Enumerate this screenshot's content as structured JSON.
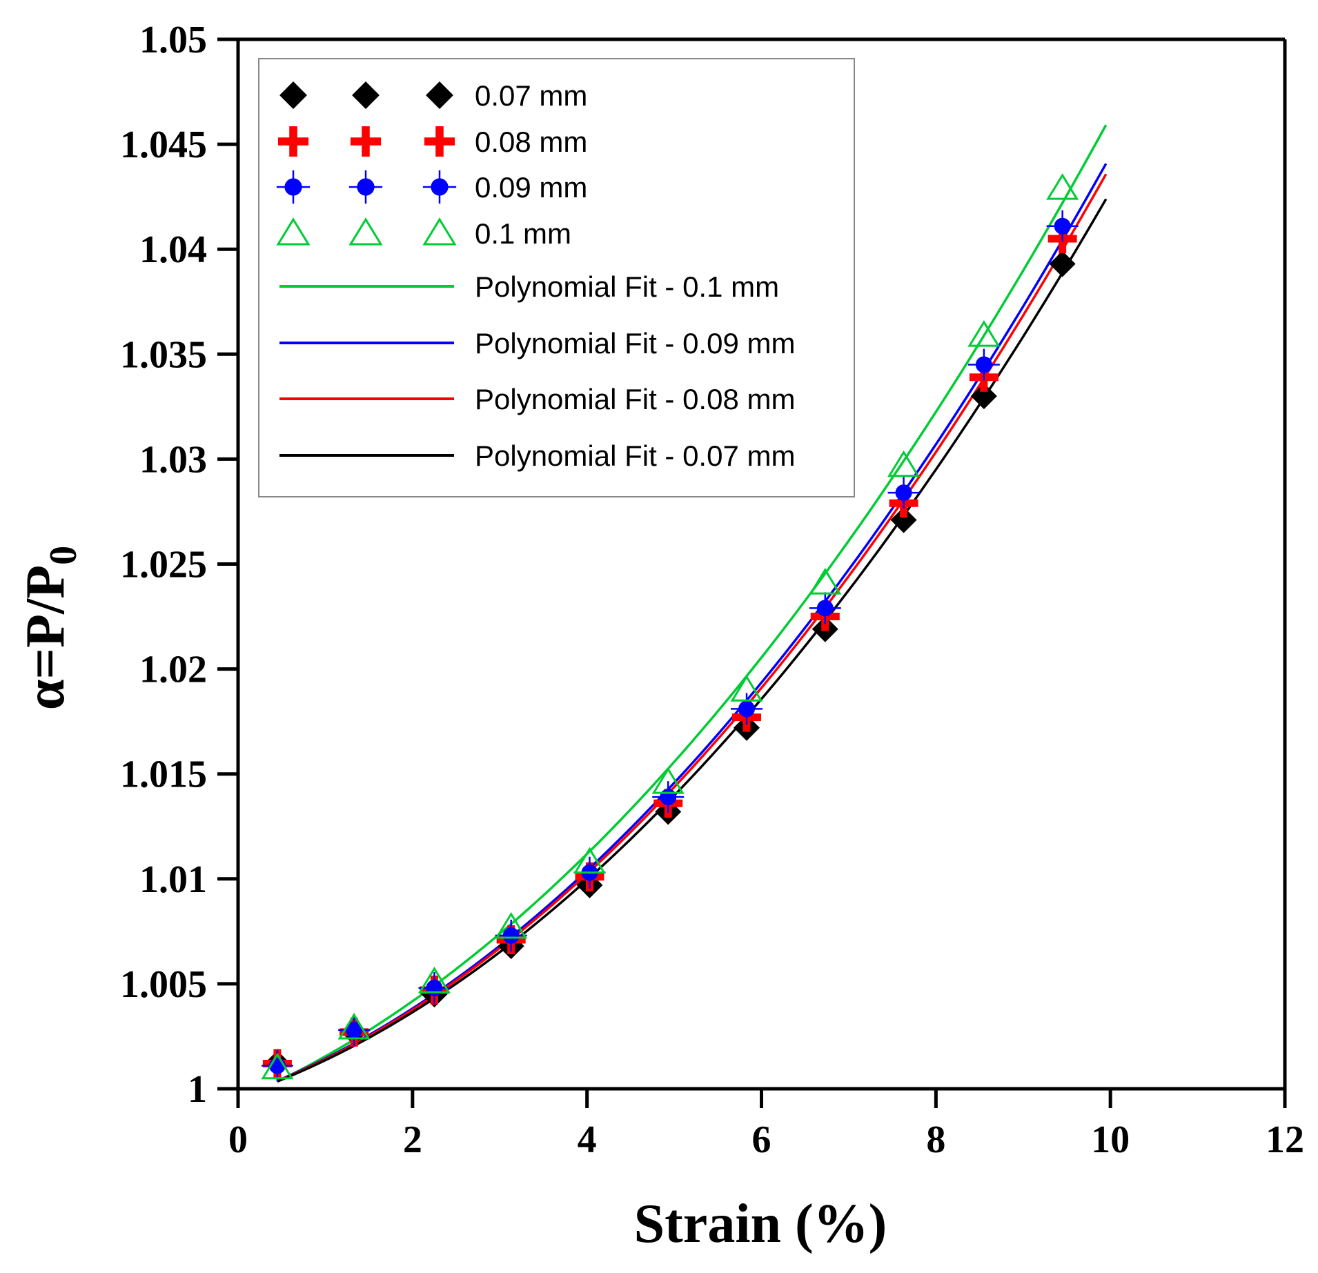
{
  "chart_data": {
    "type": "scatter",
    "xlabel": "Strain (%)",
    "ylabel": {
      "main": "α=P/P",
      "subscript": "0"
    },
    "xlim": [
      0,
      12
    ],
    "ylim": [
      1,
      1.05
    ],
    "xticks": [
      0,
      2,
      4,
      6,
      8,
      10,
      12
    ],
    "xtick_labels": [
      "0",
      "2",
      "4",
      "6",
      "8",
      "10",
      "12"
    ],
    "yticks": [
      1,
      1.005,
      1.01,
      1.015,
      1.02,
      1.025,
      1.03,
      1.035,
      1.04,
      1.045,
      1.05
    ],
    "ytick_labels": [
      "1",
      "1.005",
      "1.01",
      "1.015",
      "1.02",
      "1.025",
      "1.03",
      "1.035",
      "1.04",
      "1.045",
      "1.05"
    ],
    "grid": false,
    "legend_position": "top-left",
    "x": [
      0.45,
      1.33,
      2.25,
      3.13,
      4.03,
      4.93,
      5.83,
      6.73,
      7.63,
      8.55,
      9.45
    ],
    "series": [
      {
        "name": "0.07 mm",
        "marker": "diamond",
        "color": "#000000",
        "values": [
          1.0012,
          1.0027,
          1.0045,
          1.0068,
          1.0097,
          1.0132,
          1.0172,
          1.0219,
          1.0271,
          1.033,
          1.0393
        ]
      },
      {
        "name": "0.08 mm",
        "marker": "plus",
        "color": "#ff0000",
        "values": [
          1.0012,
          1.0027,
          1.0047,
          1.0071,
          1.0101,
          1.0136,
          1.0177,
          1.0225,
          1.0279,
          1.0339,
          1.0405
        ]
      },
      {
        "name": "0.09 mm",
        "marker": "dot-cross",
        "color": "#0000ff",
        "values": [
          1.0011,
          1.0028,
          1.0048,
          1.0073,
          1.0103,
          1.0139,
          1.0181,
          1.0229,
          1.0284,
          1.0345,
          1.0411
        ]
      },
      {
        "name": "0.1 mm",
        "marker": "open-triangle",
        "color": "#00cc33",
        "values": [
          1.001,
          1.0029,
          1.0051,
          1.0077,
          1.0108,
          1.0146,
          1.019,
          1.0241,
          1.0297,
          1.0359,
          1.0429
        ]
      }
    ],
    "fits": [
      {
        "name": "Polynomial Fit - 0.1 mm",
        "color": "#00cc33",
        "x_range": [
          0.45,
          9.95
        ],
        "coefficients": [
          0.9995,
          0.00175,
          0.000293
        ]
      },
      {
        "name": "Polynomial Fit - 0.09 mm",
        "color": "#0000ff",
        "x_range": [
          0.45,
          9.95
        ],
        "coefficients": [
          0.99965,
          0.00149,
          0.000299
        ]
      },
      {
        "name": "Polynomial Fit - 0.08 mm",
        "color": "#ff0000",
        "x_range": [
          0.45,
          9.95
        ],
        "coefficients": [
          0.99965,
          0.00146,
          0.000297
        ]
      },
      {
        "name": "Polynomial Fit - 0.07 mm",
        "color": "#000000",
        "x_range": [
          0.45,
          9.95
        ],
        "coefficients": [
          0.99965,
          0.00142,
          0.000289
        ]
      }
    ]
  }
}
